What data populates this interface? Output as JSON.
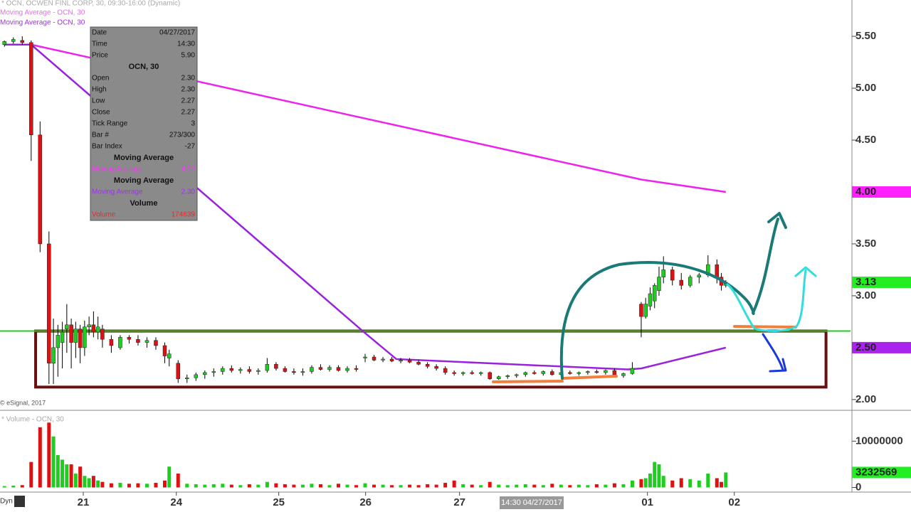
{
  "chart_data": {
    "type": "candlestick",
    "title": "* OCN, OCWEN FINL CORP, 30, 09:30-16:00 (Dynamic)",
    "source": "© eSignal, 2017",
    "volume_title": "* Volume - OCN, 30",
    "crosshair_label": "14:30 04/27/2017",
    "mode_label": "Dyn",
    "xlim": [
      -1,
      190
    ],
    "xticks": [
      {
        "value": 17.7,
        "label": "21"
      },
      {
        "value": 38.6,
        "label": "24"
      },
      {
        "value": 61.6,
        "label": "25"
      },
      {
        "value": 81.1,
        "label": "26"
      },
      {
        "value": 102.2,
        "label": "27"
      },
      {
        "value": 144.4,
        "label": "01"
      },
      {
        "value": 163.9,
        "label": "02"
      }
    ],
    "ylim": [
      1.91,
      5.85
    ],
    "yticks": [
      {
        "value": 2,
        "label": "2.00"
      },
      {
        "value": 3,
        "label": "3.00"
      },
      {
        "value": 3.5,
        "label": "3.50"
      },
      {
        "value": 4.5,
        "label": "4.50"
      },
      {
        "value": 5,
        "label": "5.00"
      },
      {
        "value": 5.5,
        "label": "5.50"
      }
    ],
    "volume_ylim": [
      -1000000,
      16500000
    ],
    "volume_yticks": [
      0,
      10000000
    ],
    "up_color": "#1fcc1f",
    "down_color": "#dd1111",
    "candles": {
      "x": [
        0,
        2,
        4,
        6,
        8,
        10,
        11,
        12,
        13,
        14,
        15,
        16,
        17,
        18,
        19,
        20,
        21,
        22,
        24,
        26,
        28,
        30,
        32,
        34,
        36,
        37,
        39,
        41,
        43,
        45,
        47,
        49,
        51,
        53,
        55,
        57,
        59,
        61,
        63,
        65,
        67,
        69,
        71,
        73,
        75,
        77,
        79,
        81,
        83,
        85,
        87,
        89,
        91,
        93,
        95,
        97,
        99,
        101,
        103,
        105,
        107,
        109,
        111,
        113,
        115,
        117,
        119,
        121,
        123,
        125,
        127,
        129,
        131,
        133,
        135,
        137,
        139,
        141,
        143,
        144,
        145,
        146,
        147,
        148,
        150,
        152,
        154,
        156,
        158,
        160,
        161,
        162
      ],
      "open": [
        5.42,
        5.45,
        5.46,
        5.44,
        4.55,
        3.5,
        2.35,
        2.5,
        2.55,
        2.68,
        2.72,
        2.55,
        2.68,
        2.5,
        2.7,
        2.72,
        2.65,
        2.68,
        2.58,
        2.5,
        2.6,
        2.58,
        2.55,
        2.57,
        2.52,
        2.4,
        2.35,
        2.2,
        2.21,
        2.24,
        2.26,
        2.27,
        2.3,
        2.28,
        2.29,
        2.27,
        2.28,
        2.34,
        2.3,
        2.27,
        2.26,
        2.27,
        2.31,
        2.29,
        2.31,
        2.28,
        2.3,
        2.4,
        2.41,
        2.38,
        2.39,
        2.37,
        2.38,
        2.36,
        2.34,
        2.32,
        2.3,
        2.26,
        2.25,
        2.26,
        2.25,
        2.26,
        2.2,
        2.22,
        2.23,
        2.24,
        2.26,
        2.25,
        2.27,
        2.24,
        2.26,
        2.25,
        2.26,
        2.27,
        2.26,
        2.28,
        2.23,
        2.25,
        2.92,
        2.8,
        2.9,
        2.95,
        3.05,
        3.18,
        3.25,
        3.15,
        3.1,
        3.18,
        3.2,
        3.3,
        3.18,
        3.1
      ],
      "high": [
        5.46,
        5.49,
        5.5,
        5.46,
        4.68,
        3.62,
        2.78,
        2.72,
        2.75,
        2.92,
        2.78,
        2.75,
        2.72,
        2.76,
        2.8,
        2.85,
        2.8,
        2.72,
        2.62,
        2.62,
        2.62,
        2.62,
        2.6,
        2.6,
        2.55,
        2.48,
        2.38,
        2.24,
        2.26,
        2.28,
        2.3,
        2.32,
        2.33,
        2.31,
        2.32,
        2.3,
        2.4,
        2.36,
        2.32,
        2.3,
        2.3,
        2.33,
        2.34,
        2.33,
        2.33,
        2.32,
        2.33,
        2.44,
        2.43,
        2.41,
        2.41,
        2.4,
        2.4,
        2.38,
        2.36,
        2.34,
        2.32,
        2.28,
        2.27,
        2.28,
        2.27,
        2.27,
        2.23,
        2.24,
        2.25,
        2.27,
        2.28,
        2.28,
        2.29,
        2.27,
        2.28,
        2.27,
        2.28,
        2.29,
        2.29,
        2.3,
        2.26,
        2.36,
        2.94,
        2.98,
        3.08,
        3.12,
        3.28,
        3.38,
        3.28,
        3.22,
        3.2,
        3.22,
        3.39,
        3.35,
        3.22,
        3.15
      ],
      "low": [
        5.4,
        5.43,
        5.42,
        4.3,
        3.42,
        2.15,
        2.15,
        2.22,
        2.3,
        2.45,
        2.3,
        2.4,
        2.35,
        2.42,
        2.62,
        2.6,
        2.58,
        2.5,
        2.45,
        2.48,
        2.54,
        2.52,
        2.5,
        2.48,
        2.35,
        2.32,
        2.16,
        2.16,
        2.18,
        2.2,
        2.22,
        2.24,
        2.26,
        2.25,
        2.25,
        2.24,
        2.26,
        2.28,
        2.26,
        2.24,
        2.23,
        2.25,
        2.28,
        2.27,
        2.27,
        2.26,
        2.27,
        2.36,
        2.37,
        2.36,
        2.36,
        2.35,
        2.35,
        2.33,
        2.3,
        2.28,
        2.24,
        2.23,
        2.23,
        2.24,
        2.23,
        2.19,
        2.19,
        2.2,
        2.21,
        2.22,
        2.24,
        2.23,
        2.23,
        2.22,
        2.24,
        2.23,
        2.24,
        2.25,
        2.24,
        2.22,
        2.21,
        2.24,
        2.6,
        2.78,
        2.86,
        2.88,
        3,
        3.12,
        3.1,
        3.06,
        3.08,
        3.12,
        3.18,
        3.12,
        3.05,
        3.08
      ],
      "close": [
        5.45,
        5.47,
        5.44,
        4.55,
        3.5,
        2.35,
        2.5,
        2.62,
        2.65,
        2.72,
        2.55,
        2.68,
        2.5,
        2.7,
        2.72,
        2.65,
        2.7,
        2.58,
        2.52,
        2.6,
        2.58,
        2.55,
        2.57,
        2.52,
        2.42,
        2.44,
        2.2,
        2.21,
        2.24,
        2.26,
        2.27,
        2.3,
        2.28,
        2.29,
        2.27,
        2.28,
        2.34,
        2.3,
        2.27,
        2.26,
        2.27,
        2.31,
        2.29,
        2.31,
        2.28,
        2.3,
        2.29,
        2.41,
        2.38,
        2.39,
        2.37,
        2.38,
        2.36,
        2.34,
        2.32,
        2.3,
        2.26,
        2.25,
        2.26,
        2.25,
        2.26,
        2.2,
        2.22,
        2.23,
        2.24,
        2.26,
        2.25,
        2.27,
        2.24,
        2.26,
        2.25,
        2.26,
        2.27,
        2.26,
        2.28,
        2.23,
        2.25,
        2.3,
        2.8,
        2.92,
        3.02,
        3.1,
        3.18,
        3.25,
        3.15,
        3.1,
        3.18,
        3.2,
        3.3,
        3.18,
        3.1,
        3.13
      ],
      "volume": [
        300000,
        400000,
        500000,
        5500000,
        13000000,
        14000000,
        11000000,
        7000000,
        6000000,
        5000000,
        5000000,
        3000000,
        4500000,
        2500000,
        2000000,
        2500000,
        1500000,
        1200000,
        900000,
        1000000,
        800000,
        900000,
        800000,
        1000000,
        1500000,
        4500000,
        3000000,
        800000,
        700000,
        600000,
        700000,
        800000,
        600000,
        500000,
        700000,
        600000,
        1200000,
        900000,
        700000,
        600000,
        600000,
        800000,
        700000,
        500000,
        800000,
        600000,
        500000,
        900000,
        600000,
        600000,
        500000,
        500000,
        600000,
        500000,
        700000,
        600000,
        1000000,
        1500000,
        700000,
        600000,
        500000,
        1200000,
        600000,
        500000,
        600000,
        700000,
        600000,
        500000,
        800000,
        600000,
        500000,
        600000,
        500000,
        700000,
        600000,
        900000,
        700000,
        1500000,
        1800000,
        2000000,
        3000000,
        5500000,
        5000000,
        2500000,
        1500000,
        2000000,
        1800000,
        1500000,
        3000000,
        2000000,
        1200000,
        3232569
      ]
    },
    "series": [
      {
        "name": "Moving Average - OCN, 30",
        "color": "#ee22ee",
        "x": [
          0,
          6,
          143,
          162
        ],
        "values": [
          5.42,
          5.42,
          4.12,
          4.0
        ]
      },
      {
        "name": "Moving Average - OCN, 30",
        "color": "#9a22dd",
        "x": [
          0,
          6,
          81,
          88,
          140,
          143,
          162
        ],
        "values": [
          5.42,
          5.42,
          2.64,
          2.39,
          2.29,
          2.3,
          2.5
        ]
      }
    ],
    "price_tags": [
      {
        "value": 4,
        "label": "4.00",
        "color": "#ff22ff"
      },
      {
        "value": 3.13,
        "label": "3.13",
        "color": "#22ee22"
      },
      {
        "value": 2.5,
        "label": "2.50",
        "color": "#aa22ee"
      }
    ],
    "volume_tag": {
      "value": 3232569,
      "label": "3232569",
      "color": "#22ee22"
    },
    "support_line": {
      "value": 2.66,
      "color": "#22cc22"
    },
    "box": {
      "x": [
        7,
        184.5
      ],
      "y": [
        2.12,
        2.66
      ],
      "color": "#6a0e0e"
    }
  },
  "data_window": {
    "rows": [
      {
        "label": "Date",
        "value": "04/27/2017"
      },
      {
        "label": "Time",
        "value": "14:30"
      },
      {
        "label": "Price",
        "value": "5.90"
      },
      {
        "heading": "OCN, 30"
      },
      {
        "label": "Open",
        "value": "2.30"
      },
      {
        "label": "High",
        "value": "2.30"
      },
      {
        "label": "Low",
        "value": "2.27"
      },
      {
        "label": "Close",
        "value": "2.27"
      },
      {
        "label": "Tick Range",
        "value": "3"
      },
      {
        "label": "Bar #",
        "value": "273/300"
      },
      {
        "label": "Bar Index",
        "value": "-27"
      },
      {
        "heading": "Moving Average"
      },
      {
        "label": "Moving Average",
        "value": "4.00",
        "color": "#ff33ff"
      },
      {
        "heading": "Moving Average"
      },
      {
        "label": "Moving Average",
        "value": "2.30",
        "color": "#a030f0"
      },
      {
        "heading": "Volume"
      },
      {
        "label": "Volume",
        "value": "174639",
        "color": "#ff2020"
      }
    ]
  }
}
